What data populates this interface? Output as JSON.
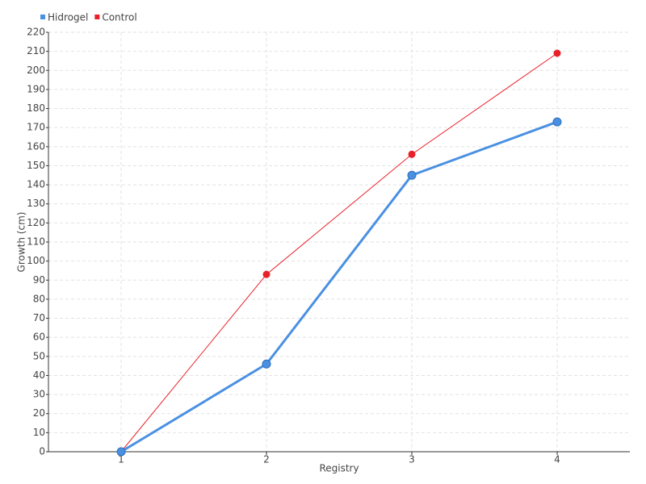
{
  "chart_data": {
    "type": "line",
    "categories": [
      "1",
      "2",
      "3",
      "4"
    ],
    "series": [
      {
        "name": "Hidrogel",
        "color": "#4a90e2",
        "values": [
          0,
          46,
          145,
          173
        ]
      },
      {
        "name": "Control",
        "color": "#e8202a",
        "values": [
          0,
          93,
          156,
          209
        ]
      }
    ],
    "x_label": "Registry",
    "y_label": "Growth (cm)",
    "ylim": [
      0,
      220
    ],
    "yticks": [
      0,
      10,
      20,
      30,
      40,
      50,
      60,
      70,
      80,
      90,
      100,
      110,
      120,
      130,
      140,
      150,
      160,
      170,
      180,
      190,
      200,
      210,
      220
    ],
    "grid": true,
    "legend": "top-left"
  }
}
